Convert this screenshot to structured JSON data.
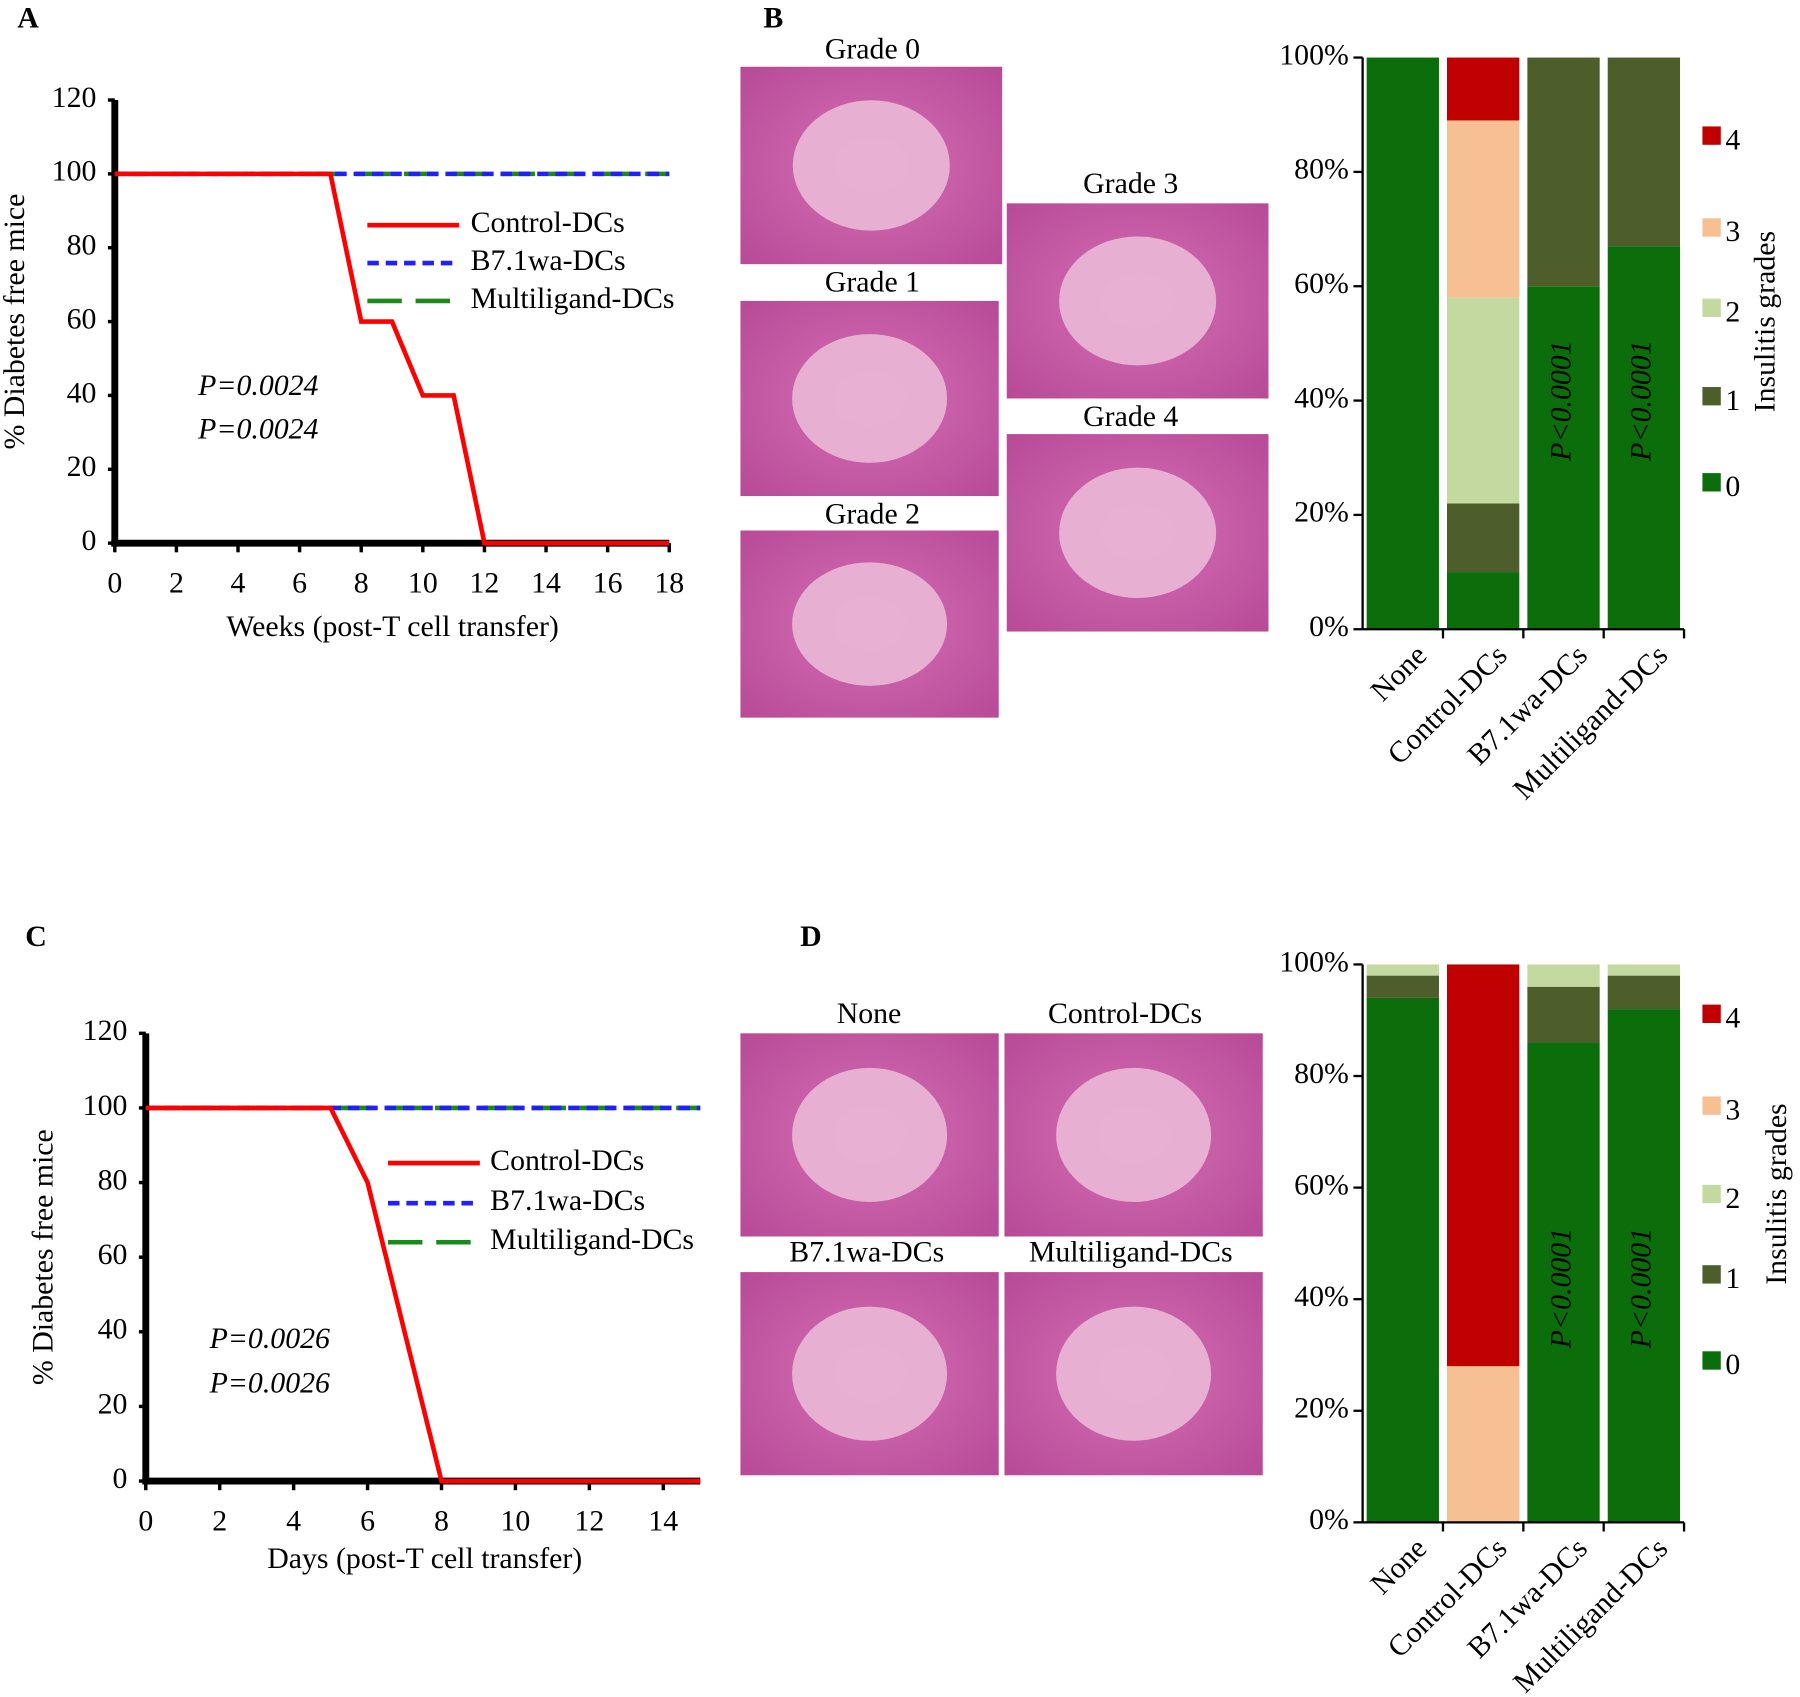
{
  "chart_data": [
    {
      "type": "line",
      "panel_label": "A",
      "xlabel": "Weeks (post-T cell transfer)",
      "ylabel": "% Diabetes free mice",
      "xlim": [
        0,
        18
      ],
      "xticks": [
        0,
        2,
        4,
        6,
        8,
        10,
        12,
        14,
        16,
        18
      ],
      "ylim": [
        0,
        120
      ],
      "yticks": [
        0,
        20,
        40,
        60,
        80,
        100,
        120
      ],
      "series": [
        {
          "name": "Control-DCs",
          "color": "#ff0000",
          "linestyle": "solid",
          "x": [
            0,
            7,
            8,
            9,
            10,
            11,
            12,
            18
          ],
          "values": [
            100,
            100,
            60,
            60,
            40,
            40,
            0,
            0
          ]
        },
        {
          "name": "B7.1wa-DCs",
          "color": "#1f1fff",
          "linestyle": "dotted",
          "x": [
            0,
            18
          ],
          "values": [
            100,
            100
          ]
        },
        {
          "name": "Multiligand-DCs",
          "color": "#1a8a1a",
          "linestyle": "dashed",
          "x": [
            0,
            18
          ],
          "values": [
            100,
            100
          ]
        }
      ],
      "annotations": [
        {
          "text": "P=0.0024",
          "color": "#4a4aff"
        },
        {
          "text": "P=0.0024",
          "color": "#1a8a1a"
        }
      ]
    },
    {
      "type": "bar",
      "panel_label": "B",
      "images": [
        "Grade 0",
        "Grade 1",
        "Grade 2",
        "Grade 3",
        "Grade 4"
      ],
      "categories": [
        "None",
        "Control-DCs",
        "B7.1wa-DCs",
        "Multiligand-DCs"
      ],
      "legend_title": "Insulitis grades",
      "ylim": [
        0,
        100
      ],
      "yticks": [
        {
          "value": 0,
          "label": "0%"
        },
        {
          "value": 20,
          "label": "20%"
        },
        {
          "value": 40,
          "label": "40%"
        },
        {
          "value": 60,
          "label": "60%"
        },
        {
          "value": 80,
          "label": "80%"
        },
        {
          "value": 100,
          "label": "100%"
        }
      ],
      "series": [
        {
          "name": "0",
          "color": "#0b6e0b",
          "values": [
            100,
            10,
            60,
            67
          ]
        },
        {
          "name": "1",
          "color": "#4d5e2b",
          "values": [
            0,
            12,
            40,
            33
          ]
        },
        {
          "name": "2",
          "color": "#c4d9a0",
          "values": [
            0,
            36,
            0,
            0
          ]
        },
        {
          "name": "3",
          "color": "#f7c092",
          "values": [
            0,
            31,
            0,
            0
          ]
        },
        {
          "name": "4",
          "color": "#c00000",
          "values": [
            0,
            11,
            0,
            0
          ]
        }
      ],
      "bar_annotations": [
        {
          "category": 2,
          "text": "P<0.0001"
        },
        {
          "category": 3,
          "text": "P<0.0001"
        }
      ]
    },
    {
      "type": "line",
      "panel_label": "C",
      "xlabel": "Days (post-T cell transfer)",
      "ylabel": "% Diabetes free mice",
      "xlim": [
        0,
        15
      ],
      "xticks": [
        0,
        2,
        4,
        6,
        8,
        10,
        12,
        14
      ],
      "ylim": [
        0,
        120
      ],
      "yticks": [
        0,
        20,
        40,
        60,
        80,
        100,
        120
      ],
      "series": [
        {
          "name": "Control-DCs",
          "color": "#ff0000",
          "linestyle": "solid",
          "x": [
            0,
            5,
            6,
            8,
            15
          ],
          "values": [
            100,
            100,
            80,
            0,
            0
          ]
        },
        {
          "name": "B7.1wa-DCs",
          "color": "#1f1fff",
          "linestyle": "dotted",
          "x": [
            0,
            15
          ],
          "values": [
            100,
            100
          ]
        },
        {
          "name": "Multiligand-DCs",
          "color": "#1a8a1a",
          "linestyle": "dashed",
          "x": [
            0,
            15
          ],
          "values": [
            100,
            100
          ]
        }
      ],
      "annotations": [
        {
          "text": "P=0.0026",
          "color": "#4a4aff"
        },
        {
          "text": "P=0.0026",
          "color": "#1a8a1a"
        }
      ]
    },
    {
      "type": "bar",
      "panel_label": "D",
      "images": [
        "None",
        "Control-DCs",
        "B7.1wa-DCs",
        "Multiligand-DCs"
      ],
      "categories": [
        "None",
        "Control-DCs",
        "B7.1wa-DCs",
        "Multiligand-DCs"
      ],
      "legend_title": "Insulitis grades",
      "ylim": [
        0,
        100
      ],
      "yticks": [
        {
          "value": 0,
          "label": "0%"
        },
        {
          "value": 20,
          "label": "20%"
        },
        {
          "value": 40,
          "label": "40%"
        },
        {
          "value": 60,
          "label": "60%"
        },
        {
          "value": 80,
          "label": "80%"
        },
        {
          "value": 100,
          "label": "100%"
        }
      ],
      "series": [
        {
          "name": "0",
          "color": "#0b6e0b",
          "values": [
            94,
            0,
            86,
            92
          ]
        },
        {
          "name": "1",
          "color": "#4d5e2b",
          "values": [
            4,
            0,
            10,
            6
          ]
        },
        {
          "name": "2",
          "color": "#c4d9a0",
          "values": [
            2,
            0,
            4,
            2
          ]
        },
        {
          "name": "3",
          "color": "#f7c092",
          "values": [
            0,
            28,
            0,
            0
          ]
        },
        {
          "name": "4",
          "color": "#c00000",
          "values": [
            0,
            72,
            0,
            0
          ]
        }
      ],
      "bar_annotations": [
        {
          "category": 2,
          "text": "P<0.0001"
        },
        {
          "category": 3,
          "text": "P<0.0001"
        }
      ]
    }
  ]
}
